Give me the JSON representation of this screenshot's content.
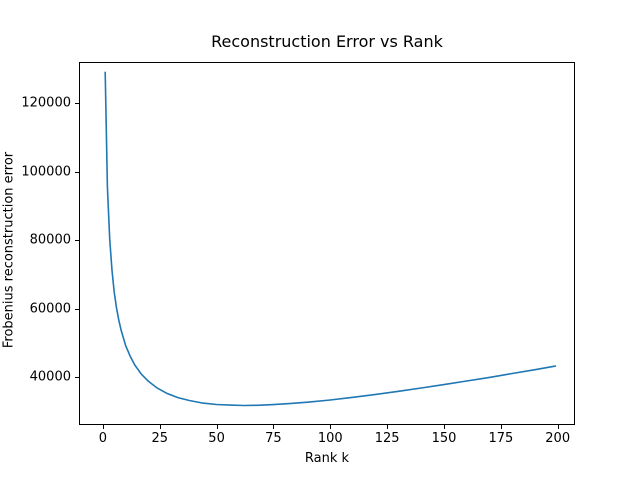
{
  "chart_data": {
    "type": "line",
    "title": "Reconstruction Error vs Rank",
    "xlabel": "Rank k",
    "ylabel": "Frobenius reconstruction error",
    "series": [
      {
        "name": "frobenius-reconstruction-error",
        "x": [
          1,
          2,
          3,
          4,
          5,
          6,
          7,
          8,
          10,
          12,
          14,
          17,
          20,
          24,
          28,
          33,
          38,
          44,
          50,
          56,
          62,
          68,
          75,
          82,
          90,
          100,
          110,
          120,
          130,
          140,
          150,
          160,
          170,
          180,
          190,
          199
        ],
        "y": [
          129000,
          95500,
          80300,
          71150,
          64850,
          60200,
          56600,
          53700,
          49250,
          46050,
          43550,
          40800,
          38750,
          36750,
          35300,
          34000,
          33150,
          32400,
          32000,
          31800,
          31700,
          31750,
          31950,
          32250,
          32650,
          33300,
          34100,
          34950,
          35850,
          36800,
          37800,
          38850,
          39900,
          41050,
          42150,
          43200
        ]
      }
    ],
    "xlim": [
      -10.5,
      207.6
    ],
    "ylim": [
      26000,
      132000
    ],
    "xticks": [
      0,
      25,
      50,
      75,
      100,
      125,
      150,
      175,
      200
    ],
    "yticks": [
      40000,
      60000,
      80000,
      100000,
      120000
    ],
    "line_color": "#1f77b4",
    "axis_color": "#000000",
    "background_color": "#ffffff",
    "grid": false,
    "legend": "none",
    "min_point": {
      "k": 62,
      "error": 31700
    }
  }
}
